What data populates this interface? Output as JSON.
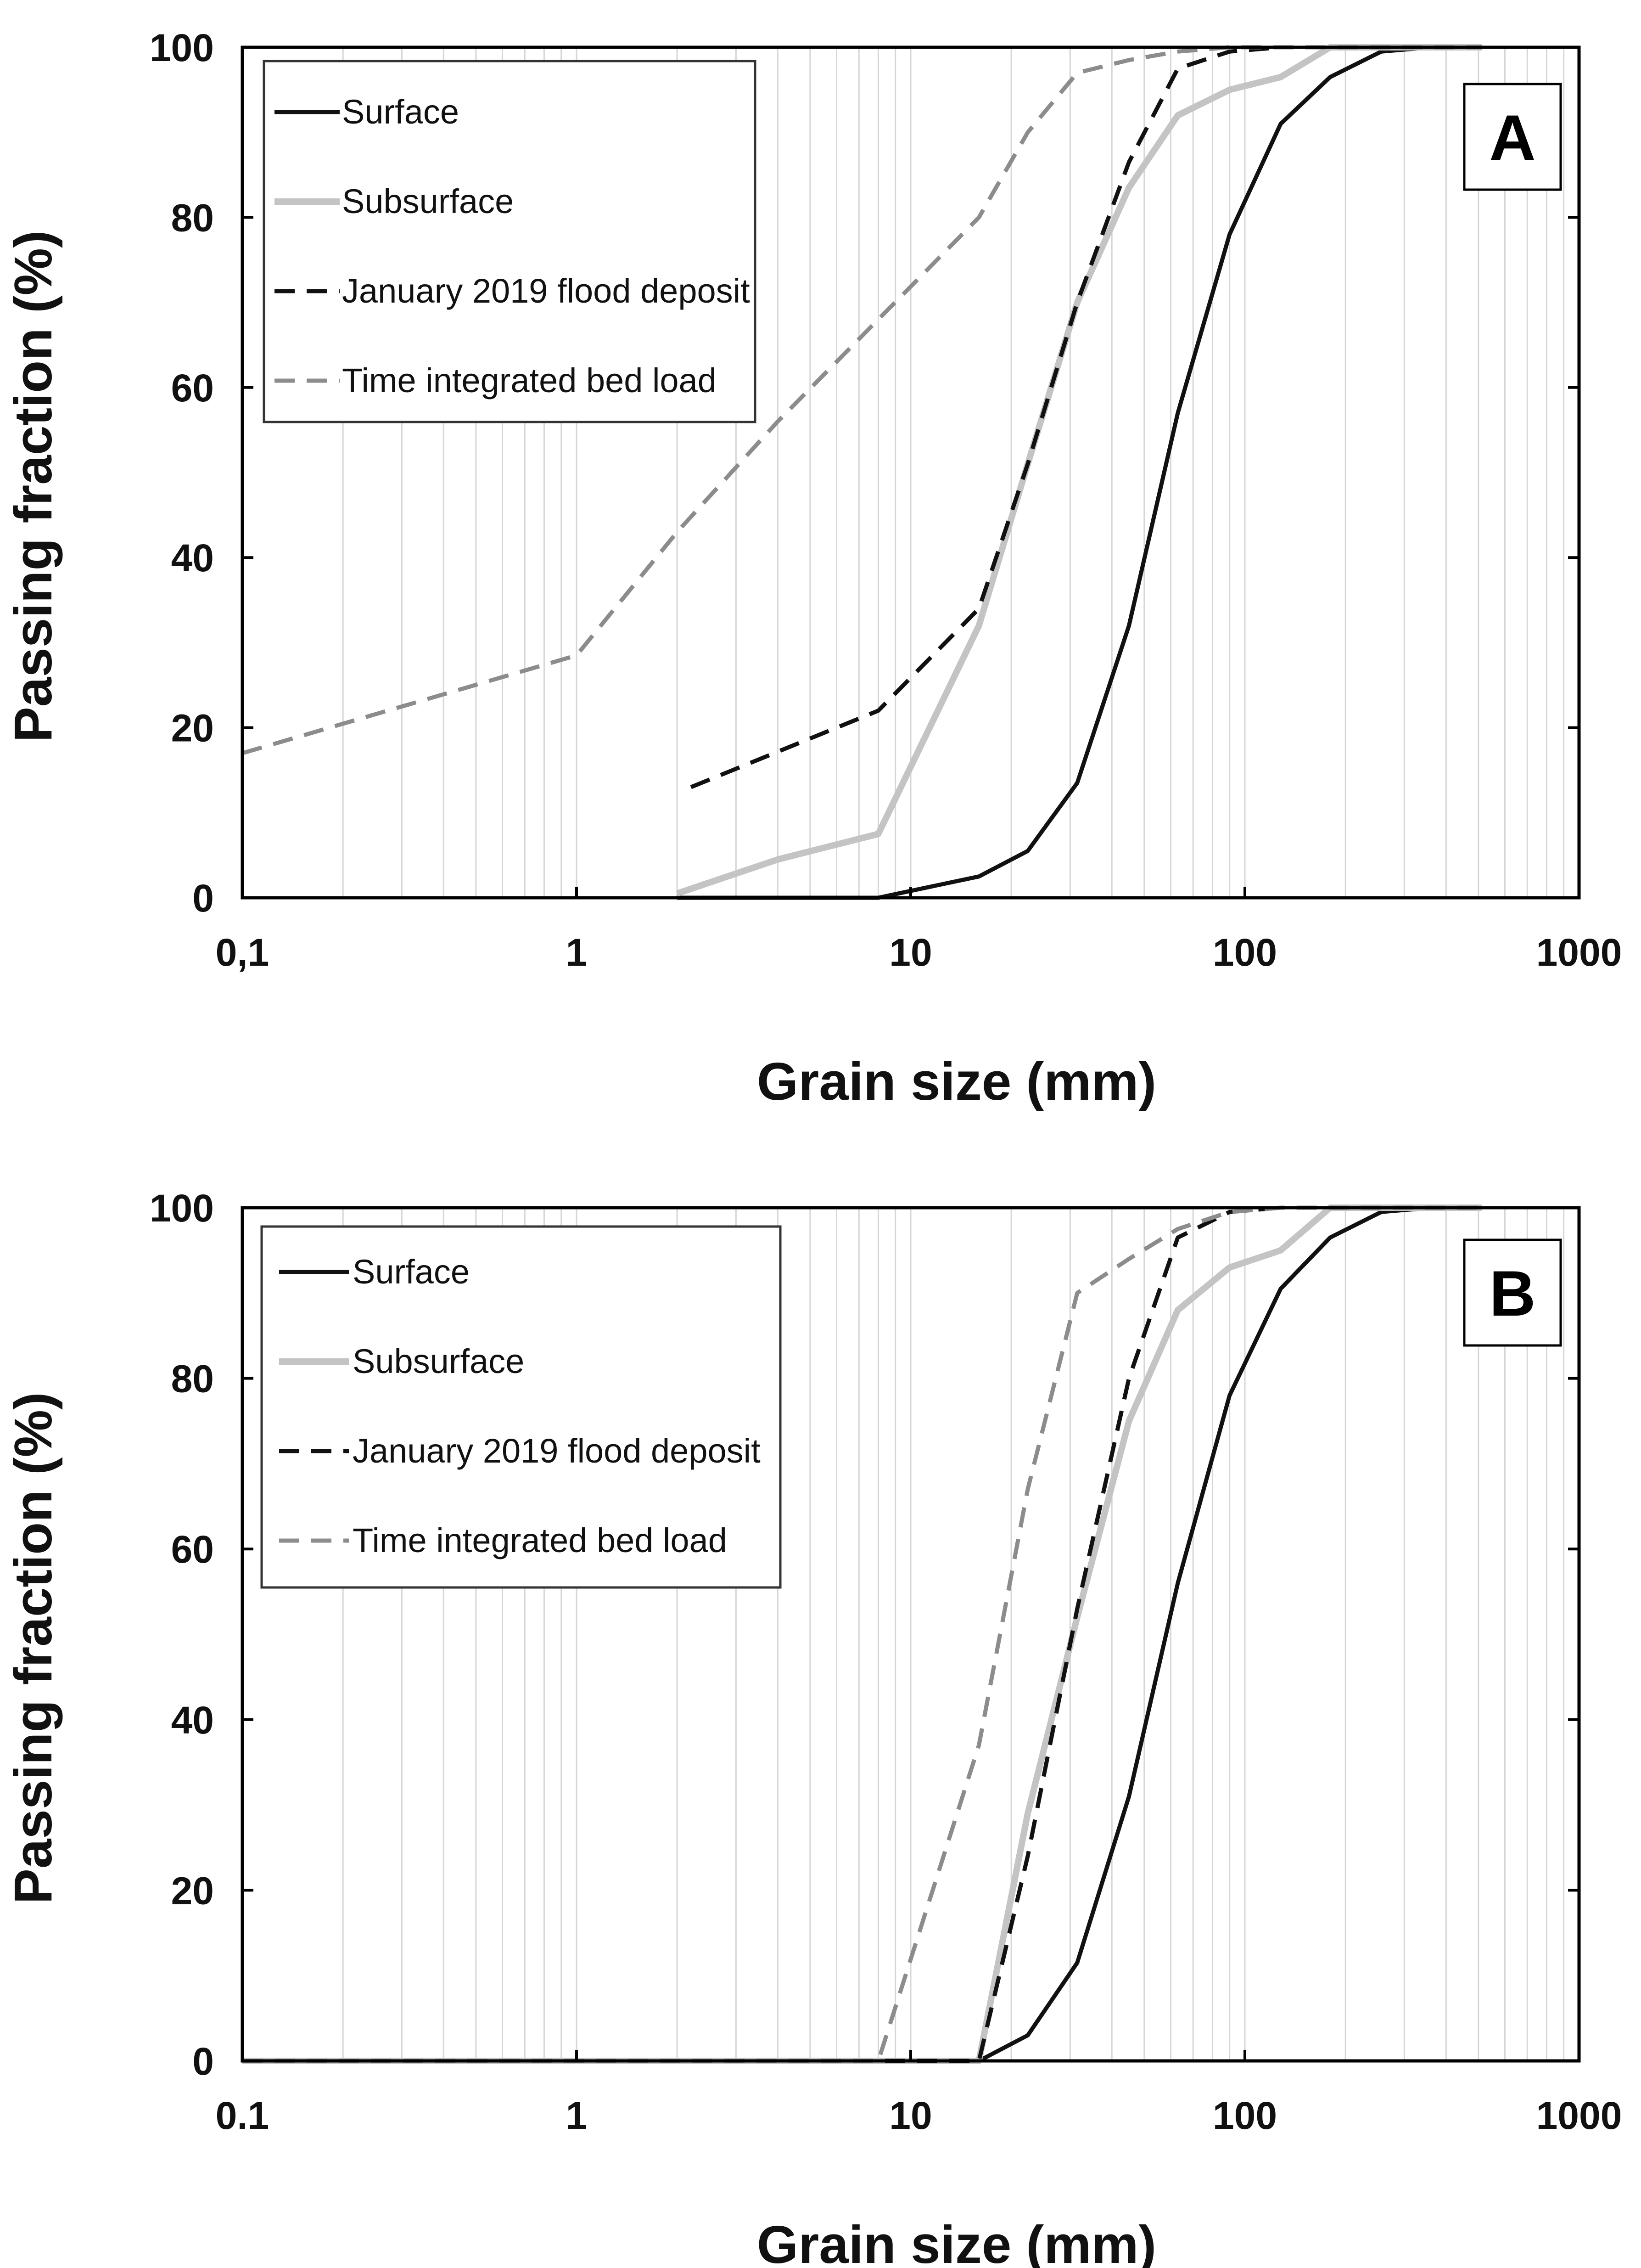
{
  "chart_data": [
    {
      "type": "line",
      "panel_label": "A",
      "xscale": "log",
      "xlim": [
        0.1,
        1000
      ],
      "ylim": [
        0,
        100
      ],
      "xlabel": "Grain size (mm)",
      "ylabel": "Passing fraction (%)",
      "x_tick_labels": [
        "0,1",
        "1",
        "10",
        "100",
        "1000"
      ],
      "y_tick_labels": [
        "0",
        "20",
        "40",
        "60",
        "80",
        "100"
      ],
      "grid": "vertical minor log gridlines",
      "legend_position": "top-left",
      "series": [
        {
          "name": "Surface",
          "color": "#111111",
          "style": "solid",
          "x": [
            2,
            8,
            16,
            22.4,
            31.5,
            45,
            63,
            90,
            128,
            180,
            256,
            362,
            512
          ],
          "y": [
            0,
            0,
            2.5,
            5.5,
            13.5,
            32,
            57,
            78,
            91,
            96.5,
            99.5,
            100,
            100
          ]
        },
        {
          "name": "Subsurface",
          "color": "#c4c4c4",
          "style": "solid",
          "x": [
            2,
            4,
            8,
            16,
            22.4,
            31.5,
            45,
            63,
            90,
            128,
            180,
            256,
            362,
            512
          ],
          "y": [
            0.5,
            4.5,
            7.5,
            32,
            51,
            70,
            83.5,
            92,
            95,
            96.5,
            100,
            100,
            100,
            100
          ]
        },
        {
          "name": "January 2019 flood deposit",
          "color": "#111111",
          "style": "dashed",
          "x": [
            2.2,
            8,
            16,
            22.4,
            31.5,
            45,
            63,
            90,
            128
          ],
          "y": [
            13,
            22,
            34,
            51,
            70,
            86.5,
            97.5,
            99.5,
            100
          ]
        },
        {
          "name": "Time integrated bed load",
          "color": "#8c8c8c",
          "style": "dashed",
          "x": [
            0.1,
            1,
            2,
            4,
            8,
            16,
            22.4,
            31.5,
            45,
            63,
            90,
            128,
            512
          ],
          "y": [
            17,
            28.5,
            43,
            56,
            68,
            80,
            90,
            97,
            98.5,
            99.5,
            100,
            100,
            100
          ]
        }
      ]
    },
    {
      "type": "line",
      "panel_label": "B",
      "xscale": "log",
      "xlim": [
        0.1,
        1000
      ],
      "ylim": [
        0,
        100
      ],
      "xlabel": "Grain size (mm)",
      "ylabel": "Passing fraction (%)",
      "x_tick_labels": [
        "0.1",
        "1",
        "10",
        "100",
        "1000"
      ],
      "y_tick_labels": [
        "0",
        "20",
        "40",
        "60",
        "80",
        "100"
      ],
      "grid": "vertical minor log gridlines",
      "legend_position": "top-left",
      "series": [
        {
          "name": "Surface",
          "color": "#111111",
          "style": "solid",
          "x": [
            16,
            22.4,
            31.5,
            45,
            63,
            90,
            128,
            180,
            256,
            362,
            512
          ],
          "y": [
            0,
            3,
            11.5,
            31,
            56,
            78,
            90.5,
            96.5,
            99.5,
            100,
            100
          ]
        },
        {
          "name": "Subsurface",
          "color": "#c4c4c4",
          "style": "solid",
          "x": [
            0.1,
            16,
            22.4,
            31.5,
            45,
            63,
            90,
            128,
            180,
            256,
            362,
            512
          ],
          "y": [
            0,
            0,
            29,
            52,
            75,
            88,
            93,
            95,
            100,
            100,
            100,
            100
          ]
        },
        {
          "name": "January 2019 flood deposit",
          "color": "#111111",
          "style": "dashed",
          "x": [
            0.1,
            16,
            22.4,
            31.5,
            45,
            63,
            90,
            128
          ],
          "y": [
            0,
            0,
            24,
            53,
            80,
            96.5,
            99.5,
            100
          ]
        },
        {
          "name": "Time integrated bed load",
          "color": "#8c8c8c",
          "style": "dashed",
          "x": [
            0.1,
            8,
            16,
            22.4,
            31.5,
            45,
            63,
            90,
            128,
            512
          ],
          "y": [
            0,
            0,
            37,
            67,
            90,
            94,
            97.5,
            99.5,
            100,
            100
          ]
        }
      ]
    }
  ]
}
